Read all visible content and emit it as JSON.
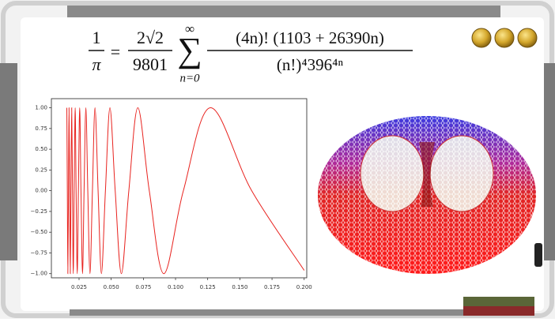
{
  "formula": {
    "lhs_numerator": "1",
    "lhs_denominator": "π",
    "coef_numerator": "2√2",
    "coef_denominator": "9801",
    "sum_upper": "∞",
    "sum_lower": "n=0",
    "term_numerator": "(4n)!  (1103 + 26390n)",
    "term_denominator": "(n!)⁴396⁴ⁿ"
  },
  "chart_data": {
    "type": "line",
    "x": [
      0.0155,
      0.0159,
      0.0163,
      0.0168,
      0.0172,
      0.0177,
      0.0182,
      0.0187,
      0.0193,
      0.0199,
      0.0205,
      0.0212,
      0.022,
      0.0227,
      0.0236,
      0.0245,
      0.0255,
      0.0265,
      0.0277,
      0.0289,
      0.0303,
      0.0318,
      0.0335,
      0.0354,
      0.0374,
      0.0398,
      0.0424,
      0.0455,
      0.049,
      0.0531,
      0.0579,
      0.0637,
      0.0707,
      0.0796,
      0.0909,
      0.1061,
      0.1273,
      0.1592,
      0.2
    ],
    "series": [
      {
        "color": "#e8231f",
        "values": [
          1,
          0,
          -1,
          0,
          1,
          0,
          -1,
          0,
          1,
          0,
          -1,
          0,
          1,
          0,
          -1,
          0,
          1,
          0,
          -1,
          0,
          1,
          0,
          -1,
          0,
          1,
          0,
          -1,
          0,
          1,
          0,
          -1,
          0,
          1,
          0,
          -1,
          0,
          1,
          0,
          -0.96
        ]
      }
    ],
    "xlim": [
      0.0035,
      0.202
    ],
    "ylim": [
      -1.05,
      1.11
    ],
    "xticks": [
      0.025,
      {
        "value": 0.05,
        "label": "0.050"
      },
      0.075,
      {
        "value": 0.1,
        "label": "0.100"
      },
      0.125,
      {
        "value": 0.15,
        "label": "0.150"
      },
      0.175,
      {
        "value": 0.2,
        "label": "0.200"
      }
    ],
    "yticks": [
      {
        "value": 1,
        "label": "1.00"
      },
      {
        "value": 0.75,
        "label": "0.75"
      },
      {
        "value": 0.5,
        "label": "0.50"
      },
      {
        "value": 0.25,
        "label": "0.25"
      },
      {
        "value": 0,
        "label": "0.00"
      },
      {
        "value": -0.25,
        "label": "−0.25"
      },
      {
        "value": -0.5,
        "label": "−0.50"
      },
      {
        "value": -0.75,
        "label": "−0.75"
      },
      {
        "value": -1,
        "label": "−1.00"
      }
    ]
  }
}
